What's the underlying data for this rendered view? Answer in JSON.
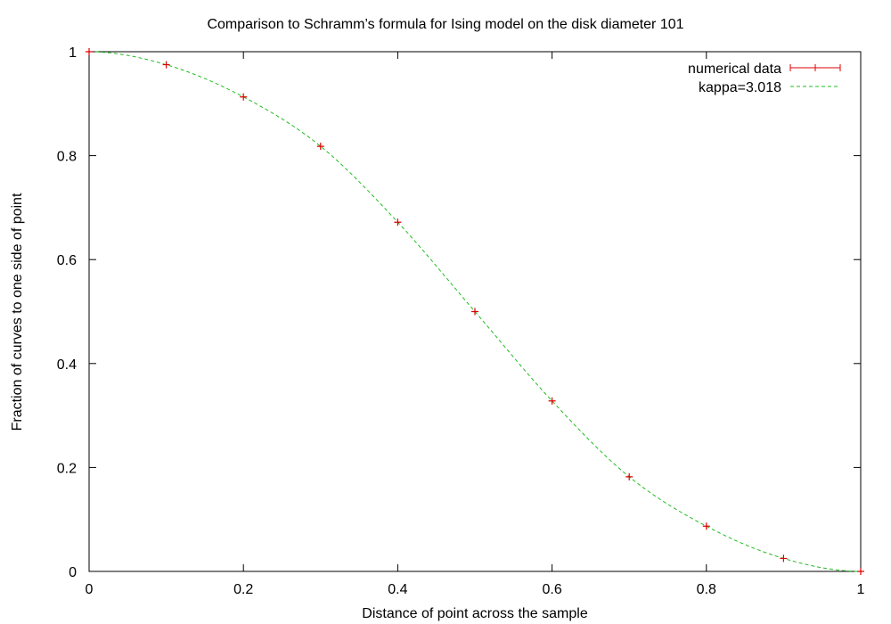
{
  "chart_data": {
    "type": "line",
    "title": "Comparison to Schramm’s formula for Ising model on the disk diameter 101",
    "xlabel": "Distance of point across the sample",
    "ylabel": "Fraction of curves to one side of point",
    "xlim": [
      0,
      1
    ],
    "ylim": [
      0,
      1
    ],
    "x_ticks": [
      "0",
      "0.2",
      "0.4",
      "0.6",
      "0.8",
      "1"
    ],
    "y_ticks": [
      "0",
      "0.2",
      "0.4",
      "0.6",
      "0.8",
      "1"
    ],
    "grid": false,
    "legend_position": "top-right",
    "series": [
      {
        "name": "numerical data",
        "style": "points-with-errorbars",
        "color": "#dd0000",
        "x": [
          0.0,
          0.1,
          0.2,
          0.3,
          0.4,
          0.5,
          0.6,
          0.7,
          0.8,
          0.9,
          1.0
        ],
        "y": [
          1.0,
          0.975,
          0.913,
          0.818,
          0.672,
          0.5,
          0.328,
          0.182,
          0.087,
          0.025,
          0.0
        ]
      },
      {
        "name": "kappa=3.018",
        "style": "dashed-line",
        "color": "#22bb22",
        "x": [
          0.0,
          0.1,
          0.2,
          0.3,
          0.4,
          0.5,
          0.6,
          0.7,
          0.8,
          0.9,
          1.0
        ],
        "y": [
          1.0,
          0.975,
          0.913,
          0.818,
          0.672,
          0.5,
          0.328,
          0.182,
          0.087,
          0.025,
          0.0
        ]
      }
    ]
  }
}
